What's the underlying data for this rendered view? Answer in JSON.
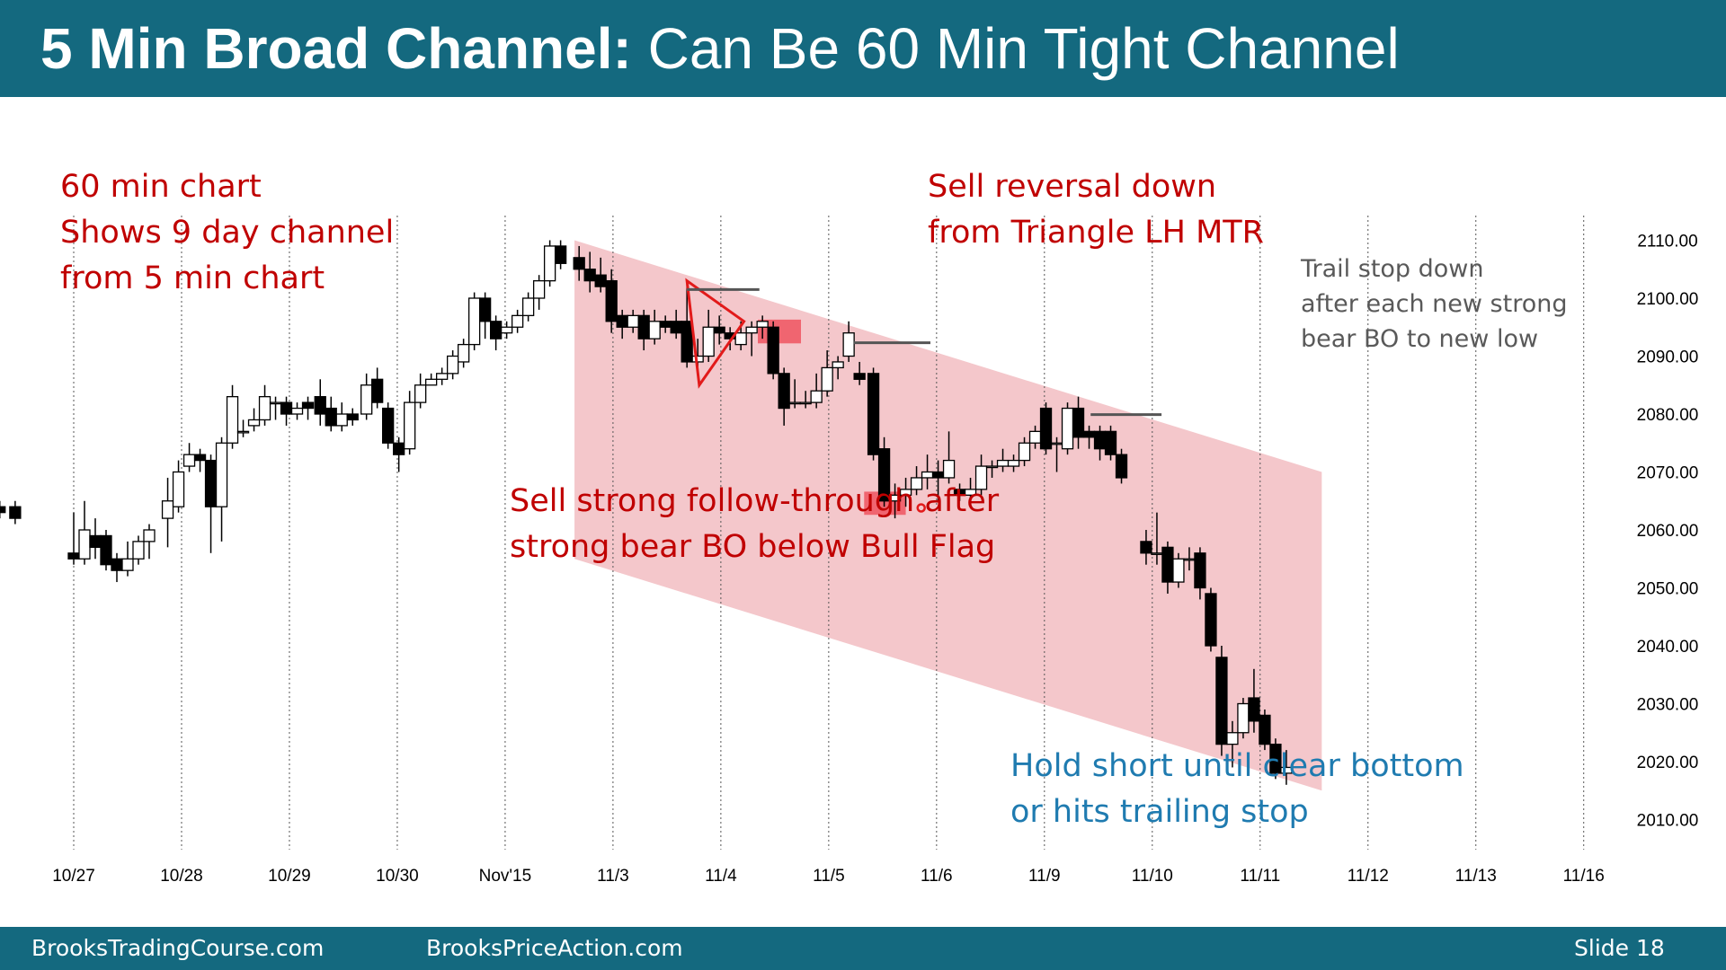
{
  "slide": {
    "title_bold": "5 Min Broad Channel:",
    "title_rest": "Can Be 60 Min Tight Channel",
    "footer_left": "BrooksTradingCourse.com",
    "footer_mid": "BrooksPriceAction.com",
    "footer_right": "Slide  18"
  },
  "annotations": {
    "top_left": [
      "60 min chart",
      "Shows 9 day channel",
      "from 5 min chart"
    ],
    "top_mid": [
      "Sell reversal down",
      "from Triangle LH MTR"
    ],
    "top_right": [
      "Trail stop down",
      "after each new strong",
      "bear BO to new low"
    ],
    "mid": [
      "Sell strong follow-through after",
      "strong bear BO below Bull Flag"
    ],
    "bottom": [
      "Hold short until clear bottom",
      "or hits trailing stop"
    ]
  },
  "colors": {
    "header": "#14697f",
    "red_text": "#c00000",
    "blue_text": "#1f7bb0",
    "gray_text": "#595959",
    "channel_fill": "#f4c7cb",
    "signal_box": "#ef5a66",
    "triangle": "#e21a1a"
  },
  "chart_data": {
    "type": "candlestick",
    "title": "",
    "xlabel": "",
    "ylabel": "",
    "ylim": [
      2005,
      2112
    ],
    "y_ticks": [
      "2110.00",
      "2100.00",
      "2090.00",
      "2080.00",
      "2070.00",
      "2060.00",
      "2050.00",
      "2040.00",
      "2030.00",
      "2020.00",
      "2010.00"
    ],
    "x_ticks": [
      "10/27",
      "10/28",
      "10/29",
      "10/30",
      "Nov'15",
      "11/3",
      "11/4",
      "11/5",
      "11/6",
      "11/9",
      "11/10",
      "11/11",
      "11/12",
      "11/13",
      "11/16"
    ],
    "grid": "vertical dotted lines at each day",
    "candles": [
      [
        -5.8,
        2066,
        2064,
        2068,
        2062
      ],
      [
        -4.8,
        2064,
        2063,
        2065,
        2062
      ],
      [
        -3.8,
        2064,
        2062,
        2065,
        2061
      ],
      [
        0.0,
        2056,
        2055,
        2063,
        2054
      ],
      [
        0.7,
        2055,
        2060,
        2065,
        2054
      ],
      [
        1.4,
        2059,
        2057,
        2062,
        2055
      ],
      [
        2.1,
        2059,
        2054,
        2060,
        2053
      ],
      [
        2.8,
        2055,
        2053,
        2056,
        2051
      ],
      [
        3.5,
        2053,
        2055,
        2058,
        2052
      ],
      [
        4.2,
        2055,
        2058,
        2059,
        2054
      ],
      [
        4.9,
        2058,
        2060,
        2061,
        2055
      ],
      [
        6.1,
        2062,
        2065,
        2069,
        2057
      ],
      [
        6.8,
        2064,
        2070,
        2072,
        2063
      ],
      [
        7.5,
        2071,
        2073,
        2075,
        2070
      ],
      [
        8.2,
        2073,
        2072,
        2074,
        2070
      ],
      [
        8.9,
        2072,
        2064,
        2073,
        2056
      ],
      [
        9.6,
        2064,
        2075,
        2076,
        2058
      ],
      [
        10.3,
        2075,
        2083,
        2085,
        2074
      ],
      [
        11.0,
        2077,
        2077,
        2079,
        2076
      ],
      [
        11.7,
        2078,
        2079,
        2081,
        2077
      ],
      [
        12.4,
        2079,
        2083,
        2085,
        2078
      ],
      [
        13.1,
        2082,
        2082,
        2083,
        2079
      ],
      [
        13.8,
        2082,
        2080,
        2083,
        2078
      ],
      [
        14.5,
        2080,
        2081,
        2082,
        2079
      ],
      [
        15.2,
        2082,
        2081,
        2083,
        2079
      ],
      [
        16.0,
        2083,
        2080,
        2086,
        2078
      ],
      [
        16.7,
        2081,
        2078,
        2083,
        2077
      ],
      [
        17.4,
        2078,
        2080,
        2082,
        2077
      ],
      [
        18.1,
        2080,
        2079,
        2081,
        2078
      ],
      [
        19.0,
        2080,
        2085,
        2087,
        2079
      ],
      [
        19.7,
        2086,
        2082,
        2088,
        2081
      ],
      [
        20.4,
        2081,
        2075,
        2082,
        2074
      ],
      [
        21.1,
        2075,
        2073,
        2076,
        2070
      ],
      [
        21.8,
        2074,
        2082,
        2084,
        2073
      ],
      [
        22.5,
        2082,
        2085,
        2087,
        2081
      ],
      [
        23.2,
        2085,
        2086,
        2087,
        2085
      ],
      [
        23.9,
        2086,
        2087,
        2088,
        2085
      ],
      [
        24.6,
        2087,
        2090,
        2091,
        2086
      ],
      [
        25.3,
        2089,
        2092,
        2093,
        2088
      ],
      [
        26.0,
        2092,
        2100,
        2101,
        2091
      ],
      [
        26.7,
        2100,
        2096,
        2101,
        2093
      ],
      [
        27.4,
        2096,
        2093,
        2097,
        2091
      ],
      [
        28.1,
        2094,
        2095,
        2096,
        2093
      ],
      [
        28.8,
        2095,
        2097,
        2098,
        2094
      ],
      [
        29.5,
        2097,
        2100,
        2101,
        2096
      ],
      [
        30.2,
        2100,
        2103,
        2104,
        2098
      ],
      [
        30.9,
        2103,
        2109,
        2110,
        2102
      ],
      [
        31.6,
        2109,
        2106,
        2110,
        2105
      ],
      [
        32.8,
        2107,
        2105,
        2109,
        2103
      ],
      [
        33.5,
        2105,
        2103,
        2108,
        2101
      ],
      [
        34.2,
        2104,
        2102,
        2107,
        2101
      ],
      [
        34.9,
        2103,
        2096,
        2105,
        2094
      ],
      [
        35.6,
        2097,
        2095,
        2098,
        2093
      ],
      [
        36.3,
        2095,
        2097,
        2098,
        2094
      ],
      [
        37.0,
        2097,
        2093,
        2098,
        2091
      ],
      [
        37.7,
        2093,
        2096,
        2098,
        2092
      ],
      [
        38.4,
        2096,
        2095,
        2097,
        2094
      ],
      [
        39.1,
        2096,
        2094,
        2098,
        2093
      ],
      [
        39.8,
        2096,
        2089,
        2103,
        2088
      ],
      [
        40.5,
        2089,
        2090,
        2093,
        2088
      ],
      [
        41.2,
        2090,
        2095,
        2098,
        2089
      ],
      [
        41.9,
        2095,
        2094,
        2097,
        2092
      ],
      [
        42.6,
        2094,
        2093,
        2095,
        2091
      ],
      [
        43.3,
        2092,
        2094,
        2096,
        2091
      ],
      [
        44.0,
        2094,
        2095,
        2096,
        2090
      ],
      [
        44.7,
        2095,
        2096,
        2097,
        2093
      ],
      [
        45.4,
        2095,
        2087,
        2096,
        2086
      ],
      [
        46.1,
        2087,
        2081,
        2088,
        2078
      ],
      [
        46.8,
        2082,
        2082,
        2086,
        2081
      ],
      [
        47.5,
        2082,
        2082,
        2084,
        2081
      ],
      [
        48.2,
        2082,
        2084,
        2087,
        2081
      ],
      [
        48.9,
        2084,
        2088,
        2091,
        2083
      ],
      [
        49.6,
        2088,
        2089,
        2090,
        2086
      ],
      [
        50.3,
        2090,
        2094,
        2096,
        2089
      ],
      [
        51.0,
        2087,
        2086,
        2089,
        2085
      ],
      [
        51.9,
        2087,
        2073,
        2088,
        2072
      ],
      [
        52.6,
        2074,
        2065,
        2076,
        2064
      ],
      [
        53.3,
        2065,
        2066,
        2068,
        2062
      ],
      [
        54.0,
        2066,
        2067,
        2069,
        2064
      ],
      [
        54.7,
        2067,
        2069,
        2071,
        2066
      ],
      [
        55.4,
        2069,
        2070,
        2073,
        2067
      ],
      [
        56.1,
        2070,
        2069,
        2072,
        2065
      ],
      [
        56.8,
        2069,
        2072,
        2077,
        2068
      ],
      [
        57.5,
        2067,
        2066,
        2068,
        2065
      ],
      [
        58.2,
        2066,
        2067,
        2069,
        2065
      ],
      [
        58.9,
        2067,
        2071,
        2073,
        2066
      ],
      [
        59.6,
        2071,
        2071,
        2072,
        2069
      ],
      [
        60.3,
        2071,
        2072,
        2074,
        2070
      ],
      [
        61.0,
        2071,
        2072,
        2073,
        2070
      ],
      [
        61.7,
        2072,
        2075,
        2076,
        2071
      ],
      [
        62.4,
        2075,
        2077,
        2078,
        2074
      ],
      [
        63.1,
        2081,
        2074,
        2082,
        2073
      ],
      [
        63.8,
        2075,
        2075,
        2076,
        2070
      ],
      [
        64.5,
        2074,
        2081,
        2082,
        2073
      ],
      [
        65.2,
        2081,
        2076,
        2083,
        2074
      ],
      [
        65.9,
        2077,
        2076,
        2078,
        2074
      ],
      [
        66.6,
        2077,
        2074,
        2078,
        2072
      ],
      [
        67.3,
        2077,
        2073,
        2078,
        2072
      ],
      [
        68.0,
        2073,
        2069,
        2074,
        2068
      ],
      [
        69.6,
        2058,
        2056,
        2060,
        2054
      ],
      [
        70.3,
        2056,
        2056,
        2063,
        2054
      ],
      [
        71.0,
        2057,
        2051,
        2058,
        2049
      ],
      [
        71.7,
        2051,
        2055,
        2056,
        2050
      ],
      [
        72.4,
        2055,
        2055,
        2057,
        2053
      ],
      [
        73.1,
        2056,
        2050,
        2057,
        2048
      ],
      [
        73.8,
        2049,
        2040,
        2050,
        2039
      ],
      [
        74.5,
        2038,
        2023,
        2040,
        2021
      ],
      [
        75.2,
        2023,
        2025,
        2027,
        2019
      ],
      [
        75.9,
        2025,
        2030,
        2031,
        2024
      ],
      [
        76.6,
        2031,
        2027,
        2036,
        2025
      ],
      [
        77.3,
        2028,
        2023,
        2029,
        2022
      ],
      [
        78.0,
        2023,
        2018,
        2024,
        2017
      ],
      [
        78.7,
        2018,
        2019,
        2022,
        2016
      ]
    ],
    "channel": {
      "top": [
        [
          32.5,
          2110
        ],
        [
          81.0,
          2070
        ]
      ],
      "bottom": [
        [
          32.5,
          2055
        ],
        [
          81.0,
          2015
        ]
      ]
    },
    "triangle": [
      [
        39.8,
        2103
      ],
      [
        40.6,
        2085
      ],
      [
        43.5,
        2096
      ]
    ],
    "stop_lines": [
      [
        39.8,
        44.5,
        2101.5
      ],
      [
        50.6,
        55.6,
        2092.3
      ],
      [
        66.0,
        70.6,
        2079.9
      ]
    ],
    "signal_boxes": [
      [
        44.4,
        47.2,
        2096.3,
        2092.2
      ],
      [
        51.3,
        54.0,
        2066.6,
        2062.6
      ]
    ],
    "marker": [
      55.0,
      2063.8
    ]
  }
}
